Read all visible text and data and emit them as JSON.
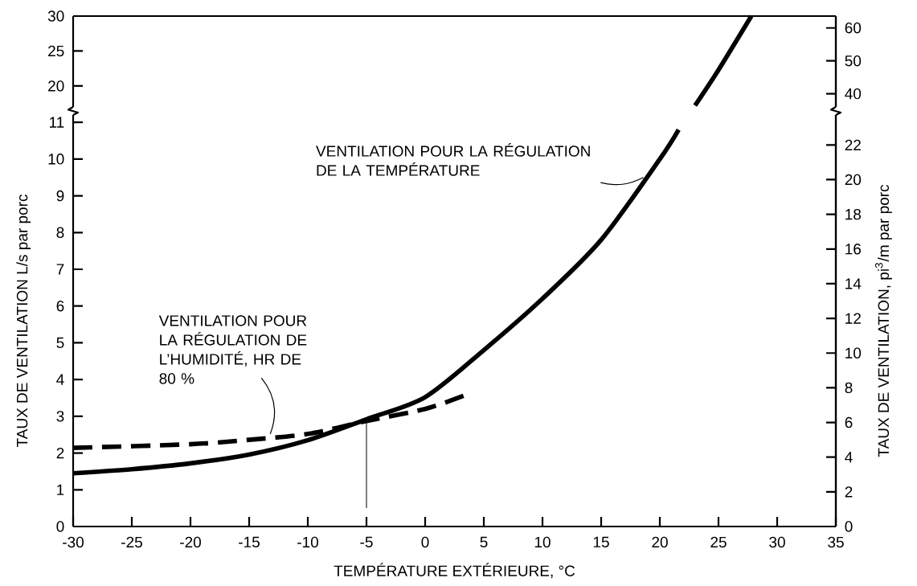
{
  "chart_data": [
    {
      "type": "line",
      "xlim": [
        -30,
        35
      ],
      "ylim": [
        17.0,
        30
      ],
      "yticks": [
        20,
        25,
        30
      ],
      "y2lim": [
        36.0,
        63.6
      ],
      "y2ticks": [
        40,
        50,
        60
      ],
      "tick_labels": "y",
      "series": [
        {
          "color": "#000000",
          "line_style": "solid",
          "x": [
            23.0,
            25,
            27.8
          ],
          "values": [
            17.2,
            22.3,
            30
          ]
        }
      ]
    },
    {
      "type": "line",
      "xlabel": "TEMPÉRATURE EXTÉRIEURE, °C",
      "ylabel": "TAUX DE VENTILATION L/s par porc",
      "y2label": "TAUX DE VENTILATION, pi$^{3}$/m par porc",
      "xlim": [
        -30,
        35
      ],
      "xticks": [
        -30,
        -25,
        -20,
        -15,
        -10,
        -5,
        0,
        5,
        10,
        15,
        20,
        25,
        30,
        35
      ],
      "ylim": [
        0,
        11.2
      ],
      "yticks": [
        0,
        1,
        2,
        3,
        4,
        5,
        6,
        7,
        8,
        9,
        10,
        11
      ],
      "y2lim": [
        0,
        23.73
      ],
      "y2ticks": [
        0,
        2,
        4,
        6,
        8,
        10,
        12,
        14,
        16,
        18,
        20,
        22
      ],
      "series": [
        {
          "color": "#000000",
          "line_style": "solid",
          "x": [
            -30,
            -25,
            -20,
            -15,
            -10,
            -5,
            0,
            5,
            10,
            15,
            20,
            21.6
          ],
          "values": [
            1.45,
            1.56,
            1.72,
            1.96,
            2.35,
            2.92,
            3.52,
            4.8,
            6.2,
            7.8,
            10.0,
            10.8
          ]
        },
        {
          "color": "#000000",
          "line_style": "dashed",
          "x": [
            -30,
            -20,
            -15,
            -10,
            -5,
            0,
            3.3
          ],
          "values": [
            2.14,
            2.24,
            2.36,
            2.52,
            2.87,
            3.2,
            3.56
          ]
        }
      ],
      "ref_lines": [
        {
          "axis": "x",
          "value": -5
        }
      ],
      "annotations": [
        {
          "text": "VENTILATION POUR LA RÉGULATION DE LA TEMPÉRATURE",
          "x": 18.6,
          "y": 9.5
        },
        {
          "text": "VENTILATION POUR LA RÉGULATION DE L’HUMIDITÉ, HR DE 80 %",
          "x": -13.2,
          "y": 2.52
        }
      ]
    }
  ]
}
